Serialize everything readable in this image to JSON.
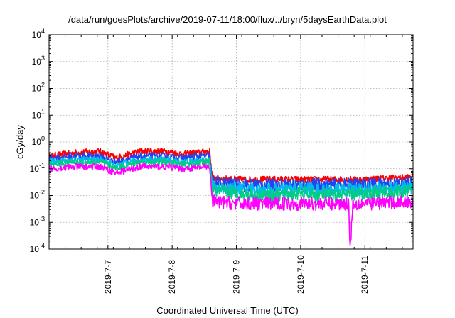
{
  "chart_data": {
    "type": "line",
    "title": "/data/run/goesPlots/archive/2019-07-11/18:00/flux/../bryn/5daysEarthData.plot",
    "xlabel": "Coordinated Universal Time (UTC)",
    "ylabel": "cGy/day",
    "yscale": "log",
    "ylim": [
      "1e-4",
      "1e4"
    ],
    "xlim": [
      "2019-07-06 02:00",
      "2019-07-11 18:00"
    ],
    "y_ticks": [
      {
        "base": "10",
        "exp": "-4"
      },
      {
        "base": "10",
        "exp": "-3"
      },
      {
        "base": "10",
        "exp": "-2"
      },
      {
        "base": "10",
        "exp": "-1"
      },
      {
        "base": "10",
        "exp": "0"
      },
      {
        "base": "10",
        "exp": "1"
      },
      {
        "base": "10",
        "exp": "2"
      },
      {
        "base": "10",
        "exp": "3"
      },
      {
        "base": "10",
        "exp": "4"
      }
    ],
    "x_ticks": [
      "2019-7-7",
      "2019-7-8",
      "2019-7-9",
      "2019-7-10",
      "2019-7-11"
    ],
    "grid": true,
    "series_colors": [
      "#ff0000",
      "#2244ee",
      "#00bbee",
      "#00cc88",
      "#ff00ff"
    ],
    "series": [
      {
        "color": "#ff0000",
        "x": [
          "2019-07-06 02:00",
          "2019-07-06 12:00",
          "2019-07-06 21:00",
          "2019-07-07 03:00",
          "2019-07-07 12:00",
          "2019-07-07 22:00",
          "2019-07-08 04:00",
          "2019-07-08 09:00",
          "2019-07-08 14:00",
          "2019-07-08 15:00",
          "2019-07-09 00:00",
          "2019-07-09 12:00",
          "2019-07-10 00:00",
          "2019-07-10 12:00",
          "2019-07-11 00:00",
          "2019-07-11 18:00"
        ],
        "y": [
          0.3,
          0.4,
          0.45,
          0.25,
          0.45,
          0.45,
          0.35,
          0.4,
          0.45,
          0.045,
          0.04,
          0.04,
          0.04,
          0.04,
          0.04,
          0.05
        ]
      },
      {
        "color": "#2244ee",
        "x": [
          "2019-07-06 02:00",
          "2019-07-06 12:00",
          "2019-07-06 21:00",
          "2019-07-07 03:00",
          "2019-07-07 12:00",
          "2019-07-07 22:00",
          "2019-07-08 04:00",
          "2019-07-08 09:00",
          "2019-07-08 14:00",
          "2019-07-08 15:00",
          "2019-07-09 00:00",
          "2019-07-09 12:00",
          "2019-07-10 00:00",
          "2019-07-10 12:00",
          "2019-07-11 00:00",
          "2019-07-11 18:00"
        ],
        "y": [
          0.25,
          0.3,
          0.3,
          0.18,
          0.3,
          0.3,
          0.25,
          0.3,
          0.3,
          0.03,
          0.025,
          0.025,
          0.025,
          0.025,
          0.025,
          0.03
        ]
      },
      {
        "color": "#00bbee",
        "x": [
          "2019-07-06 02:00",
          "2019-07-06 12:00",
          "2019-07-06 21:00",
          "2019-07-07 03:00",
          "2019-07-07 12:00",
          "2019-07-07 22:00",
          "2019-07-08 04:00",
          "2019-07-08 09:00",
          "2019-07-08 14:00",
          "2019-07-08 15:00",
          "2019-07-09 00:00",
          "2019-07-09 12:00",
          "2019-07-10 00:00",
          "2019-07-10 12:00",
          "2019-07-11 00:00",
          "2019-07-11 18:00"
        ],
        "y": [
          0.18,
          0.22,
          0.22,
          0.13,
          0.22,
          0.22,
          0.18,
          0.2,
          0.22,
          0.02,
          0.018,
          0.016,
          0.018,
          0.016,
          0.018,
          0.02
        ]
      },
      {
        "color": "#00cc88",
        "x": [
          "2019-07-06 02:00",
          "2019-07-06 12:00",
          "2019-07-06 21:00",
          "2019-07-07 03:00",
          "2019-07-07 12:00",
          "2019-07-07 22:00",
          "2019-07-08 04:00",
          "2019-07-08 09:00",
          "2019-07-08 14:00",
          "2019-07-08 15:00",
          "2019-07-09 00:00",
          "2019-07-09 12:00",
          "2019-07-10 00:00",
          "2019-07-10 12:00",
          "2019-07-11 00:00",
          "2019-07-11 18:00"
        ],
        "y": [
          0.15,
          0.18,
          0.18,
          0.11,
          0.18,
          0.18,
          0.15,
          0.17,
          0.18,
          0.015,
          0.012,
          0.01,
          0.012,
          0.01,
          0.012,
          0.014
        ]
      },
      {
        "color": "#ff00ff",
        "x": [
          "2019-07-06 02:00",
          "2019-07-06 12:00",
          "2019-07-06 21:00",
          "2019-07-07 03:00",
          "2019-07-07 12:00",
          "2019-07-07 22:00",
          "2019-07-08 04:00",
          "2019-07-08 09:00",
          "2019-07-08 14:00",
          "2019-07-08 15:00",
          "2019-07-09 00:00",
          "2019-07-09 12:00",
          "2019-07-10 00:00",
          "2019-07-10 12:00",
          "2019-07-10 18:00",
          "2019-07-10 18:30",
          "2019-07-10 19:30",
          "2019-07-11 00:00",
          "2019-07-11 18:00"
        ],
        "y": [
          0.1,
          0.12,
          0.12,
          0.07,
          0.12,
          0.12,
          0.1,
          0.11,
          0.12,
          0.006,
          0.005,
          0.005,
          0.005,
          0.005,
          0.005,
          0.0001,
          0.005,
          0.005,
          0.006
        ]
      }
    ]
  }
}
